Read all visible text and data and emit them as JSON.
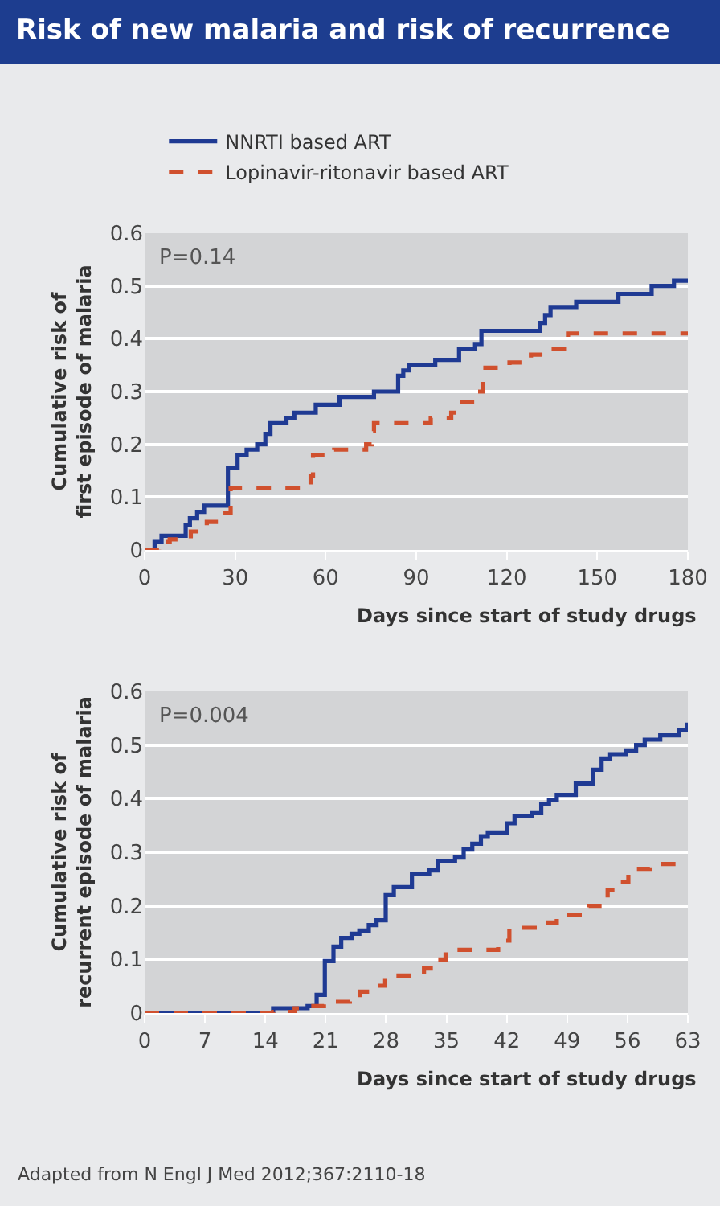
{
  "chart_data": [
    {
      "type": "step",
      "title": "Risk of new malaria and risk of recurrence",
      "xlabel": "Days since start of study drugs",
      "ylabel": "Cumulative risk of first episode of malaria",
      "annotations": [
        "P=0.14"
      ],
      "xlim": [
        0,
        180
      ],
      "xticks": [
        0,
        30,
        60,
        90,
        120,
        150,
        180
      ],
      "ylim": [
        0,
        0.6
      ],
      "yticks": [
        0,
        0.1,
        0.2,
        0.3,
        0.4,
        0.5,
        0.6
      ],
      "grid": "y",
      "legend": "top left",
      "series": [
        {
          "name": "NNRTI based ART",
          "color": "#1f3a93",
          "line_style": "solid",
          "x": [
            0,
            3.3,
            5.6,
            13.6,
            15,
            17.4,
            19.7,
            27.6,
            30.8,
            33.8,
            37.3,
            40,
            41.7,
            47,
            49.6,
            56.7,
            64.6,
            76,
            84,
            85.7,
            87.5,
            96.3,
            104.2,
            109.5,
            111.6,
            131,
            132.7,
            134.5,
            143,
            157,
            168,
            175.4,
            180
          ],
          "values": [
            0,
            0.015,
            0.027,
            0.048,
            0.06,
            0.072,
            0.084,
            0.156,
            0.18,
            0.19,
            0.2,
            0.22,
            0.24,
            0.25,
            0.26,
            0.275,
            0.29,
            0.3,
            0.33,
            0.34,
            0.35,
            0.36,
            0.38,
            0.39,
            0.415,
            0.43,
            0.445,
            0.46,
            0.47,
            0.485,
            0.5,
            0.51,
            0.51
          ]
        },
        {
          "name": "Lopinavir-ritonavir based ART",
          "color": "#d0502e",
          "line_style": "dashed",
          "x": [
            0,
            4.75,
            8.3,
            15.3,
            20.6,
            25.9,
            28.5,
            55,
            55.8,
            62.8,
            73.4,
            75.2,
            76,
            94.8,
            101.6,
            103.4,
            110.4,
            112.1,
            120.9,
            128,
            132.4,
            140.3,
            180
          ],
          "values": [
            0,
            0.015,
            0.02,
            0.035,
            0.053,
            0.07,
            0.117,
            0.14,
            0.18,
            0.19,
            0.2,
            0.225,
            0.24,
            0.25,
            0.26,
            0.28,
            0.3,
            0.345,
            0.355,
            0.37,
            0.38,
            0.41,
            0.41
          ]
        }
      ]
    },
    {
      "type": "step",
      "xlabel": "Days since start of study drugs",
      "ylabel": "Cumulative risk of recurrent episode of malaria",
      "annotations": [
        "P=0.004",
        "Adapted from N Engl J Med 2012;367:2110-18"
      ],
      "xlim": [
        0,
        63
      ],
      "xticks": [
        0,
        7,
        14,
        21,
        28,
        35,
        42,
        49,
        56,
        63
      ],
      "ylim": [
        0,
        0.6
      ],
      "yticks": [
        0,
        0.1,
        0.2,
        0.3,
        0.4,
        0.5,
        0.6
      ],
      "grid": "y",
      "series": [
        {
          "color": "#1f3a93",
          "line_style": "solid",
          "x": [
            0,
            14.9,
            18.9,
            19.95,
            20.9,
            21.9,
            22.8,
            24,
            24.9,
            26,
            26.9,
            27.96,
            28.9,
            31,
            33,
            34,
            36,
            37,
            38,
            39,
            39.8,
            42,
            42.9,
            44.9,
            46,
            46.9,
            47.8,
            50,
            52,
            53,
            54,
            55.8,
            57,
            58,
            59.8,
            62,
            62.9,
            63
          ],
          "values": [
            0,
            0.009,
            0.013,
            0.034,
            0.097,
            0.124,
            0.14,
            0.148,
            0.154,
            0.164,
            0.173,
            0.22,
            0.235,
            0.259,
            0.266,
            0.283,
            0.29,
            0.305,
            0.316,
            0.33,
            0.337,
            0.354,
            0.367,
            0.373,
            0.39,
            0.397,
            0.407,
            0.428,
            0.454,
            0.475,
            0.483,
            0.49,
            0.5,
            0.51,
            0.518,
            0.528,
            0.538,
            0.538
          ]
        },
        {
          "color": "#d0502e",
          "line_style": "dashed",
          "x": [
            0,
            14.9,
            17.4,
            18.9,
            20.8,
            23.8,
            25,
            26.9,
            27.9,
            32.4,
            34.3,
            34.9,
            41,
            42.3,
            46,
            47.8,
            51.5,
            53.7,
            54.9,
            56.1,
            58.6,
            63
          ],
          "values": [
            0,
            0.002,
            0.009,
            0.013,
            0.021,
            0.029,
            0.04,
            0.051,
            0.07,
            0.083,
            0.1,
            0.118,
            0.135,
            0.159,
            0.169,
            0.183,
            0.2,
            0.23,
            0.245,
            0.269,
            0.278,
            0.278
          ]
        }
      ]
    }
  ]
}
